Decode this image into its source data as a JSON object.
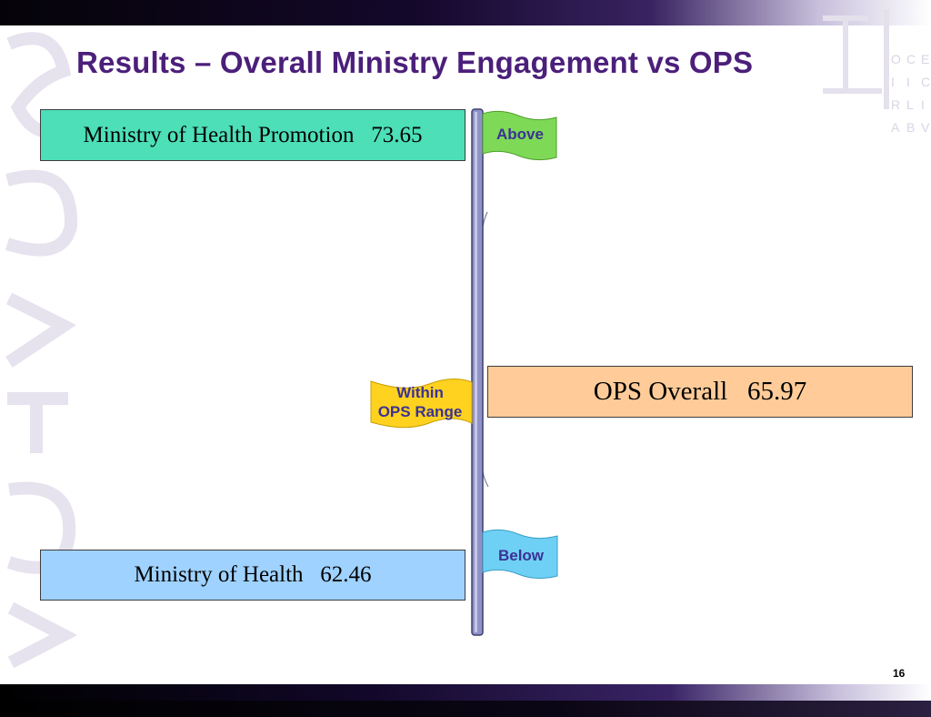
{
  "slide": {
    "title": "Results – Overall Ministry Engagement vs OPS",
    "page_number": "16"
  },
  "boxes": {
    "health_promotion": "Ministry of Health Promotion   73.65",
    "ops_overall": "OPS Overall   65.97",
    "health": "Ministry of Health   62.46"
  },
  "flags": {
    "above": "Above",
    "within_line1": "Within",
    "within_line2": "OPS Range",
    "below": "Below"
  },
  "colors": {
    "title": "#4b1f7a",
    "above_flag": "#7ed957",
    "within_flag": "#ffd21f",
    "below_flag": "#6fd0f5",
    "promo_box": "#4cdfb8",
    "health_box": "#9fd2ff",
    "ops_box": "#ffcc99"
  }
}
